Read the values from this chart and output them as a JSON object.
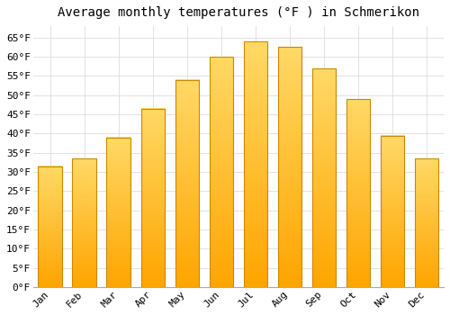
{
  "title": "Average monthly temperatures (°F ) in Schmerikon",
  "months": [
    "Jan",
    "Feb",
    "Mar",
    "Apr",
    "May",
    "Jun",
    "Jul",
    "Aug",
    "Sep",
    "Oct",
    "Nov",
    "Dec"
  ],
  "values": [
    31.5,
    33.5,
    39.0,
    46.5,
    54.0,
    60.0,
    64.0,
    62.5,
    57.0,
    49.0,
    39.5,
    33.5
  ],
  "bar_color_bottom": "#FFA500",
  "bar_color_top": "#FFD966",
  "bar_edge_color": "#CC8800",
  "ylim": [
    0,
    68
  ],
  "yticks": [
    0,
    5,
    10,
    15,
    20,
    25,
    30,
    35,
    40,
    45,
    50,
    55,
    60,
    65
  ],
  "ytick_labels": [
    "0°F",
    "5°F",
    "10°F",
    "15°F",
    "20°F",
    "25°F",
    "30°F",
    "35°F",
    "40°F",
    "45°F",
    "50°F",
    "55°F",
    "60°F",
    "65°F"
  ],
  "background_color": "#ffffff",
  "grid_color": "#dddddd",
  "title_fontsize": 10,
  "tick_fontsize": 8,
  "bar_width": 0.7
}
